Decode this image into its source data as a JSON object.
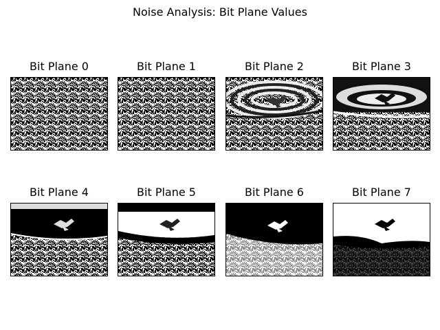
{
  "figure": {
    "title": "Noise Analysis: Bit Plane Values"
  },
  "panels": [
    {
      "title": "Bit Plane 0",
      "style": "noise"
    },
    {
      "title": "Bit Plane 1",
      "style": "noise"
    },
    {
      "title": "Bit Plane 2",
      "style": "rings-light"
    },
    {
      "title": "Bit Plane 3",
      "style": "rings-dark"
    },
    {
      "title": "Bit Plane 4",
      "style": "dark-top"
    },
    {
      "title": "Bit Plane 5",
      "style": "white-lake"
    },
    {
      "title": "Bit Plane 6",
      "style": "black-lake"
    },
    {
      "title": "Bit Plane 7",
      "style": "white-sky"
    }
  ]
}
